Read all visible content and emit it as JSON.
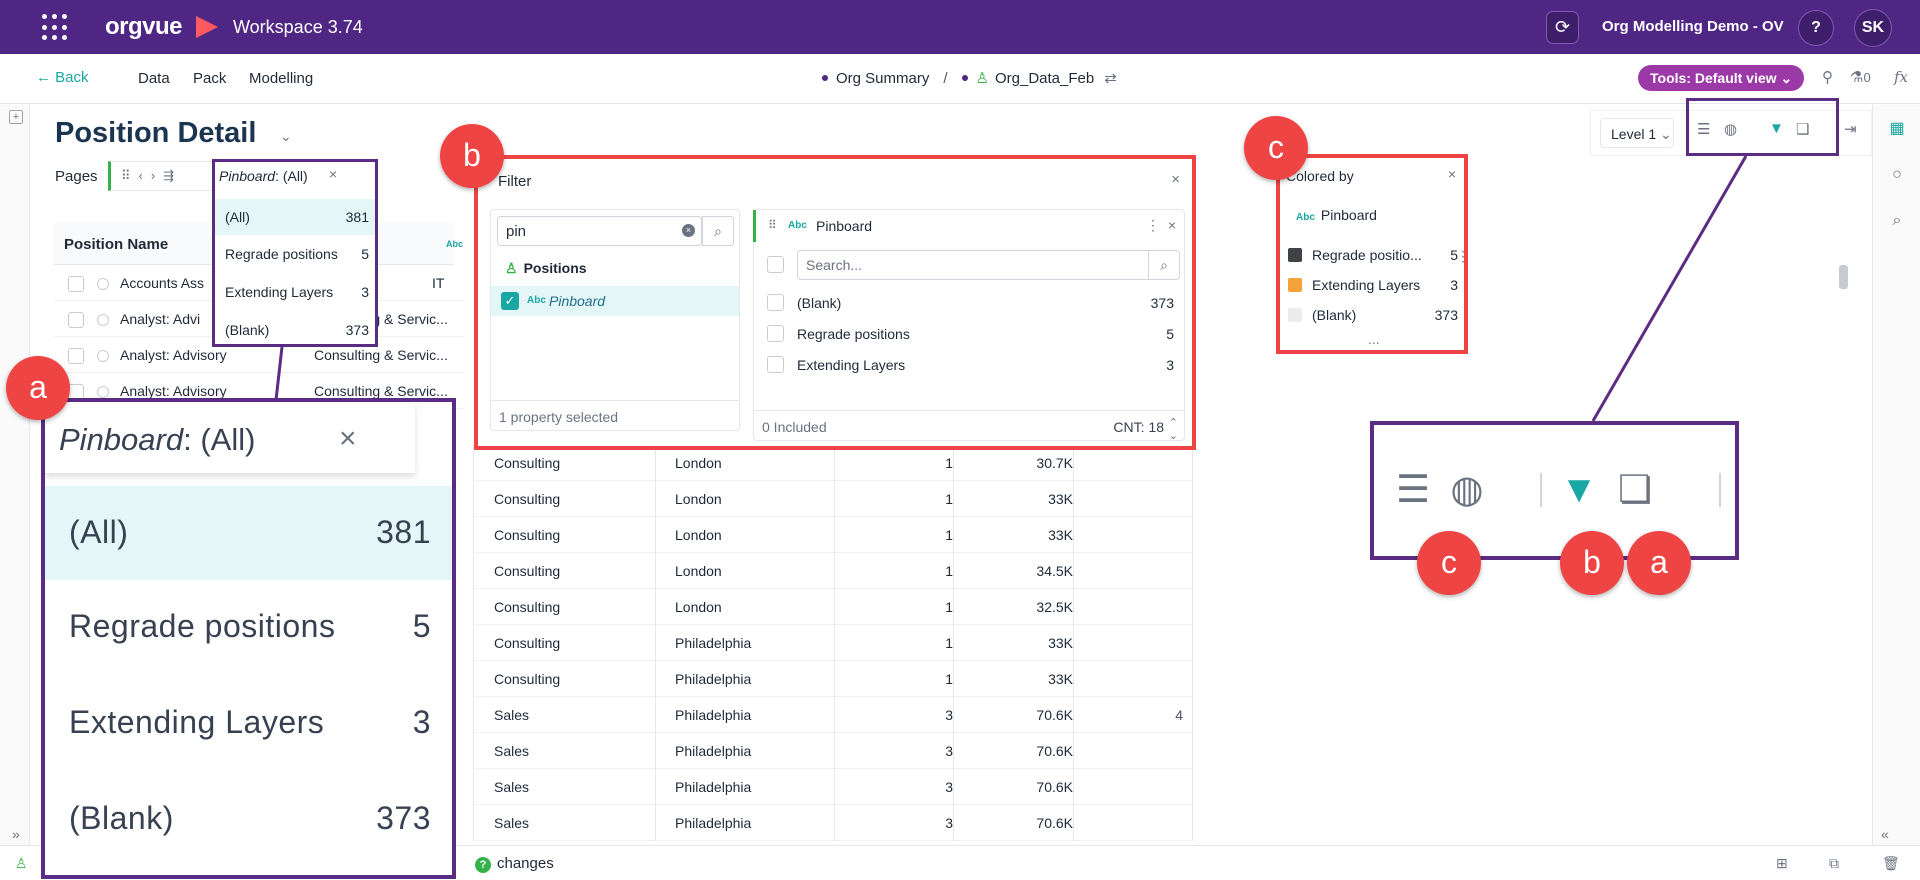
{
  "topbar": {
    "brand": "orgvue",
    "workspace": "Workspace 3.74",
    "demo_name": "Org Modelling Demo - OV",
    "help": "?",
    "avatar": "SK"
  },
  "nav": {
    "back": "Back",
    "items": [
      "Data",
      "Pack",
      "Modelling"
    ],
    "crumb_1": "Org Summary",
    "crumb_sep": "/",
    "crumb_2": "Org_Data_Feb",
    "tools": "Tools: Default view",
    "pin_count": "0",
    "fx": "fx"
  },
  "page": {
    "title": "Position Detail",
    "pages_label": "Pages",
    "level": "Level 1"
  },
  "table": {
    "col_name": "Position Name",
    "col_abc": "Abc",
    "left_rows": [
      {
        "name": "Accounts Ass",
        "dept": "IT"
      },
      {
        "name": "Analyst: Advi",
        "dept": "Consulting & Servic..."
      },
      {
        "name": "Analyst: Advisory",
        "dept": "Consulting & Servic..."
      },
      {
        "name": "Analyst: Advisory",
        "dept": "Consulting & Servic..."
      }
    ],
    "rows": [
      {
        "dept": "Consulting",
        "city": "London",
        "n": "1",
        "val": "30.7K",
        "extra": ""
      },
      {
        "dept": "Consulting",
        "city": "London",
        "n": "1",
        "val": "33K",
        "extra": ""
      },
      {
        "dept": "Consulting",
        "city": "London",
        "n": "1",
        "val": "33K",
        "extra": ""
      },
      {
        "dept": "Consulting",
        "city": "London",
        "n": "1",
        "val": "34.5K",
        "extra": ""
      },
      {
        "dept": "Consulting",
        "city": "London",
        "n": "1",
        "val": "32.5K",
        "extra": ""
      },
      {
        "dept": "Consulting",
        "city": "Philadelphia",
        "n": "1",
        "val": "33K",
        "extra": ""
      },
      {
        "dept": "Consulting",
        "city": "Philadelphia",
        "n": "1",
        "val": "33K",
        "extra": ""
      },
      {
        "dept": "Sales",
        "city": "Philadelphia",
        "n": "3",
        "val": "70.6K",
        "extra": "4"
      },
      {
        "dept": "Sales",
        "city": "Philadelphia",
        "n": "3",
        "val": "70.6K",
        "extra": ""
      },
      {
        "dept": "Sales",
        "city": "Philadelphia",
        "n": "3",
        "val": "70.6K",
        "extra": ""
      },
      {
        "dept": "Sales",
        "city": "Philadelphia",
        "n": "3",
        "val": "70.6K",
        "extra": ""
      }
    ]
  },
  "pinboard": {
    "prop": "Pinboard",
    "sep": ": (All)",
    "close": "×",
    "items": [
      {
        "label": "(All)",
        "count": "381"
      },
      {
        "label": "Regrade positions",
        "count": "5"
      },
      {
        "label": "Extending Layers",
        "count": "3"
      },
      {
        "label": "(Blank)",
        "count": "373"
      }
    ]
  },
  "filter": {
    "title": "Filter",
    "search_value": "pin",
    "group": "Positions",
    "prop": "Pinboard",
    "abc": "Abc",
    "left_footer": "1 property selected",
    "right_title": "Pinboard",
    "right_search_placeholder": "Search...",
    "items": [
      {
        "label": "(Blank)",
        "count": "373"
      },
      {
        "label": "Regrade positions",
        "count": "5"
      },
      {
        "label": "Extending Layers",
        "count": "3"
      }
    ],
    "included": "0 Included",
    "cnt": "CNT: 18"
  },
  "colored_by": {
    "title": "Colored by",
    "prop": "Pinboard",
    "abc": "Abc",
    "items": [
      {
        "label": "Regrade positio...",
        "count": "5",
        "color": "#3f4346"
      },
      {
        "label": "Extending Layers",
        "count": "3",
        "color": "#f5a23a"
      },
      {
        "label": "(Blank)",
        "count": "373",
        "color": "#ececec"
      }
    ],
    "more": "..."
  },
  "status": {
    "changes": "changes"
  },
  "badges": {
    "a": "a",
    "b": "b",
    "c": "c"
  },
  "colors": {
    "topbar": "#4f2683",
    "accent": "#1aa7a3",
    "callout_red": "#ef4444",
    "callout_purple": "#5b2c83",
    "tools_button": "#9b3aa6",
    "status_green": "#35b34a"
  }
}
